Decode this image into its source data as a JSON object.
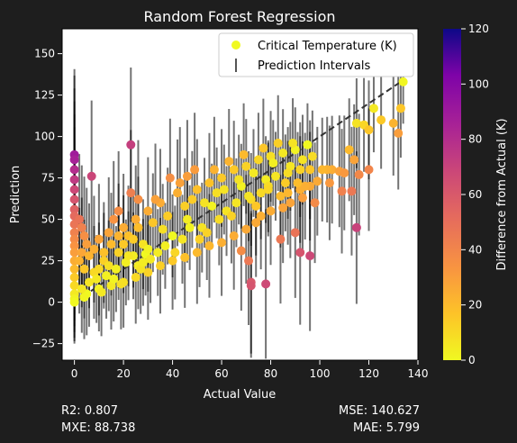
{
  "chart_data": {
    "type": "scatter",
    "title": "Random Forest Regression",
    "xlabel": "Actual Value",
    "ylabel": "Prediction",
    "xlim": [
      -5,
      140
    ],
    "ylim": [
      -35,
      165
    ],
    "xticks": [
      0,
      20,
      40,
      60,
      80,
      100,
      120,
      140
    ],
    "yticks": [
      -25,
      0,
      25,
      50,
      75,
      100,
      125,
      150
    ],
    "grid": false,
    "legend_position": "top-right",
    "legend": [
      "Critical Temperature (K)",
      "Prediction Intervals"
    ],
    "reference_line": {
      "from": [
        0,
        0
      ],
      "to": [
        135,
        135
      ],
      "style": "dashed"
    },
    "colorbar": {
      "label": "Difference from Actual (K)",
      "ticks": [
        0,
        20,
        40,
        60,
        80,
        100,
        120
      ],
      "range": [
        0,
        120
      ],
      "colormap": "plasma_r"
    },
    "points": [
      [
        0,
        89
      ],
      [
        0,
        86
      ],
      [
        0,
        80
      ],
      [
        0,
        74
      ],
      [
        0,
        68
      ],
      [
        0,
        62
      ],
      [
        0,
        56
      ],
      [
        0,
        52
      ],
      [
        0,
        47
      ],
      [
        0,
        42
      ],
      [
        0,
        38
      ],
      [
        0,
        34
      ],
      [
        0,
        30
      ],
      [
        0,
        25
      ],
      [
        0,
        20
      ],
      [
        0,
        15
      ],
      [
        0,
        10
      ],
      [
        0,
        5
      ],
      [
        0,
        2
      ],
      [
        0,
        0
      ],
      [
        7,
        76
      ],
      [
        23,
        95
      ],
      [
        23,
        66
      ],
      [
        46,
        76
      ],
      [
        72,
        12
      ],
      [
        72,
        10
      ],
      [
        78,
        11
      ],
      [
        115,
        45
      ],
      [
        93,
        63
      ],
      [
        92,
        30
      ],
      [
        96,
        28
      ],
      [
        90,
        42
      ],
      [
        84,
        38
      ],
      [
        68,
        31
      ],
      [
        71,
        25
      ],
      [
        105,
        80
      ],
      [
        108,
        79
      ],
      [
        110,
        78
      ],
      [
        115,
        108
      ],
      [
        118,
        107
      ],
      [
        120,
        104
      ],
      [
        122,
        117
      ],
      [
        125,
        110
      ],
      [
        130,
        108
      ],
      [
        132,
        102
      ],
      [
        134,
        133
      ],
      [
        133,
        117
      ],
      [
        112,
        92
      ],
      [
        114,
        86
      ],
      [
        116,
        77
      ],
      [
        98,
        60
      ],
      [
        104,
        72
      ],
      [
        109,
        67
      ],
      [
        113,
        67
      ],
      [
        120,
        80
      ],
      [
        103,
        80
      ],
      [
        101,
        80
      ],
      [
        99,
        73
      ],
      [
        96,
        70
      ],
      [
        92,
        68
      ],
      [
        88,
        60
      ],
      [
        85,
        57
      ],
      [
        80,
        55
      ],
      [
        76,
        52
      ],
      [
        74,
        48
      ],
      [
        70,
        44
      ],
      [
        65,
        40
      ],
      [
        60,
        36
      ],
      [
        55,
        34
      ],
      [
        50,
        30
      ],
      [
        45,
        27
      ],
      [
        40,
        25
      ],
      [
        35,
        22
      ],
      [
        30,
        18
      ],
      [
        25,
        15
      ],
      [
        20,
        12
      ],
      [
        15,
        10
      ],
      [
        10,
        8
      ],
      [
        5,
        5
      ],
      [
        10,
        20
      ],
      [
        12,
        25
      ],
      [
        15,
        35
      ],
      [
        18,
        30
      ],
      [
        20,
        45
      ],
      [
        22,
        40
      ],
      [
        25,
        50
      ],
      [
        28,
        35
      ],
      [
        30,
        55
      ],
      [
        32,
        48
      ],
      [
        35,
        60
      ],
      [
        38,
        52
      ],
      [
        40,
        40
      ],
      [
        42,
        66
      ],
      [
        45,
        58
      ],
      [
        48,
        62
      ],
      [
        50,
        68
      ],
      [
        52,
        45
      ],
      [
        55,
        72
      ],
      [
        58,
        66
      ],
      [
        60,
        75
      ],
      [
        62,
        55
      ],
      [
        65,
        80
      ],
      [
        68,
        70
      ],
      [
        70,
        82
      ],
      [
        72,
        62
      ],
      [
        75,
        86
      ],
      [
        78,
        74
      ],
      [
        80,
        88
      ],
      [
        82,
        76
      ],
      [
        85,
        90
      ],
      [
        88,
        82
      ],
      [
        90,
        92
      ],
      [
        92,
        80
      ],
      [
        95,
        95
      ],
      [
        97,
        88
      ],
      [
        6,
        12
      ],
      [
        8,
        18
      ],
      [
        14,
        22
      ],
      [
        16,
        14
      ],
      [
        24,
        28
      ],
      [
        26,
        22
      ],
      [
        34,
        30
      ],
      [
        36,
        44
      ],
      [
        44,
        38
      ],
      [
        46,
        50
      ],
      [
        54,
        42
      ],
      [
        56,
        58
      ],
      [
        64,
        52
      ],
      [
        66,
        60
      ],
      [
        74,
        58
      ],
      [
        76,
        66
      ],
      [
        84,
        64
      ],
      [
        86,
        72
      ],
      [
        94,
        70
      ],
      [
        96,
        80
      ],
      [
        18,
        55
      ],
      [
        26,
        62
      ],
      [
        33,
        62
      ],
      [
        39,
        75
      ],
      [
        43,
        72
      ],
      [
        49,
        80
      ],
      [
        53,
        60
      ],
      [
        57,
        80
      ],
      [
        61,
        68
      ],
      [
        63,
        85
      ],
      [
        67,
        74
      ],
      [
        69,
        89
      ],
      [
        73,
        78
      ],
      [
        77,
        93
      ],
      [
        79,
        70
      ],
      [
        81,
        84
      ],
      [
        83,
        96
      ],
      [
        87,
        78
      ],
      [
        89,
        96
      ],
      [
        91,
        72
      ],
      [
        3,
        8
      ],
      [
        4,
        3
      ],
      [
        9,
        14
      ],
      [
        11,
        6
      ],
      [
        13,
        16
      ],
      [
        17,
        20
      ],
      [
        19,
        11
      ],
      [
        21,
        24
      ],
      [
        27,
        20
      ],
      [
        29,
        29
      ],
      [
        31,
        26
      ],
      [
        37,
        34
      ],
      [
        41,
        30
      ],
      [
        47,
        45
      ],
      [
        51,
        38
      ],
      [
        59,
        50
      ],
      [
        71,
        64
      ],
      [
        79,
        68
      ],
      [
        87,
        66
      ],
      [
        93,
        86
      ],
      [
        2,
        50
      ],
      [
        3,
        45
      ],
      [
        4,
        40
      ],
      [
        5,
        35
      ],
      [
        3,
        30
      ],
      [
        2,
        25
      ],
      [
        4,
        20
      ],
      [
        6,
        28
      ],
      [
        8,
        32
      ],
      [
        10,
        38
      ],
      [
        12,
        30
      ],
      [
        14,
        42
      ],
      [
        16,
        50
      ],
      [
        18,
        40
      ],
      [
        20,
        35
      ],
      [
        22,
        28
      ],
      [
        24,
        38
      ],
      [
        26,
        45
      ],
      [
        28,
        24
      ],
      [
        30,
        32
      ]
    ]
  },
  "stats": {
    "r2": "R2: 0.807",
    "mxe": "MXE: 88.738",
    "mse": "MSE: 140.627",
    "mae": "MAE: 5.799"
  },
  "colors": {
    "background": "#1e1e1e",
    "plot_background": "#ffffff",
    "errorbar": "#000000",
    "reference_line": "#333333"
  }
}
